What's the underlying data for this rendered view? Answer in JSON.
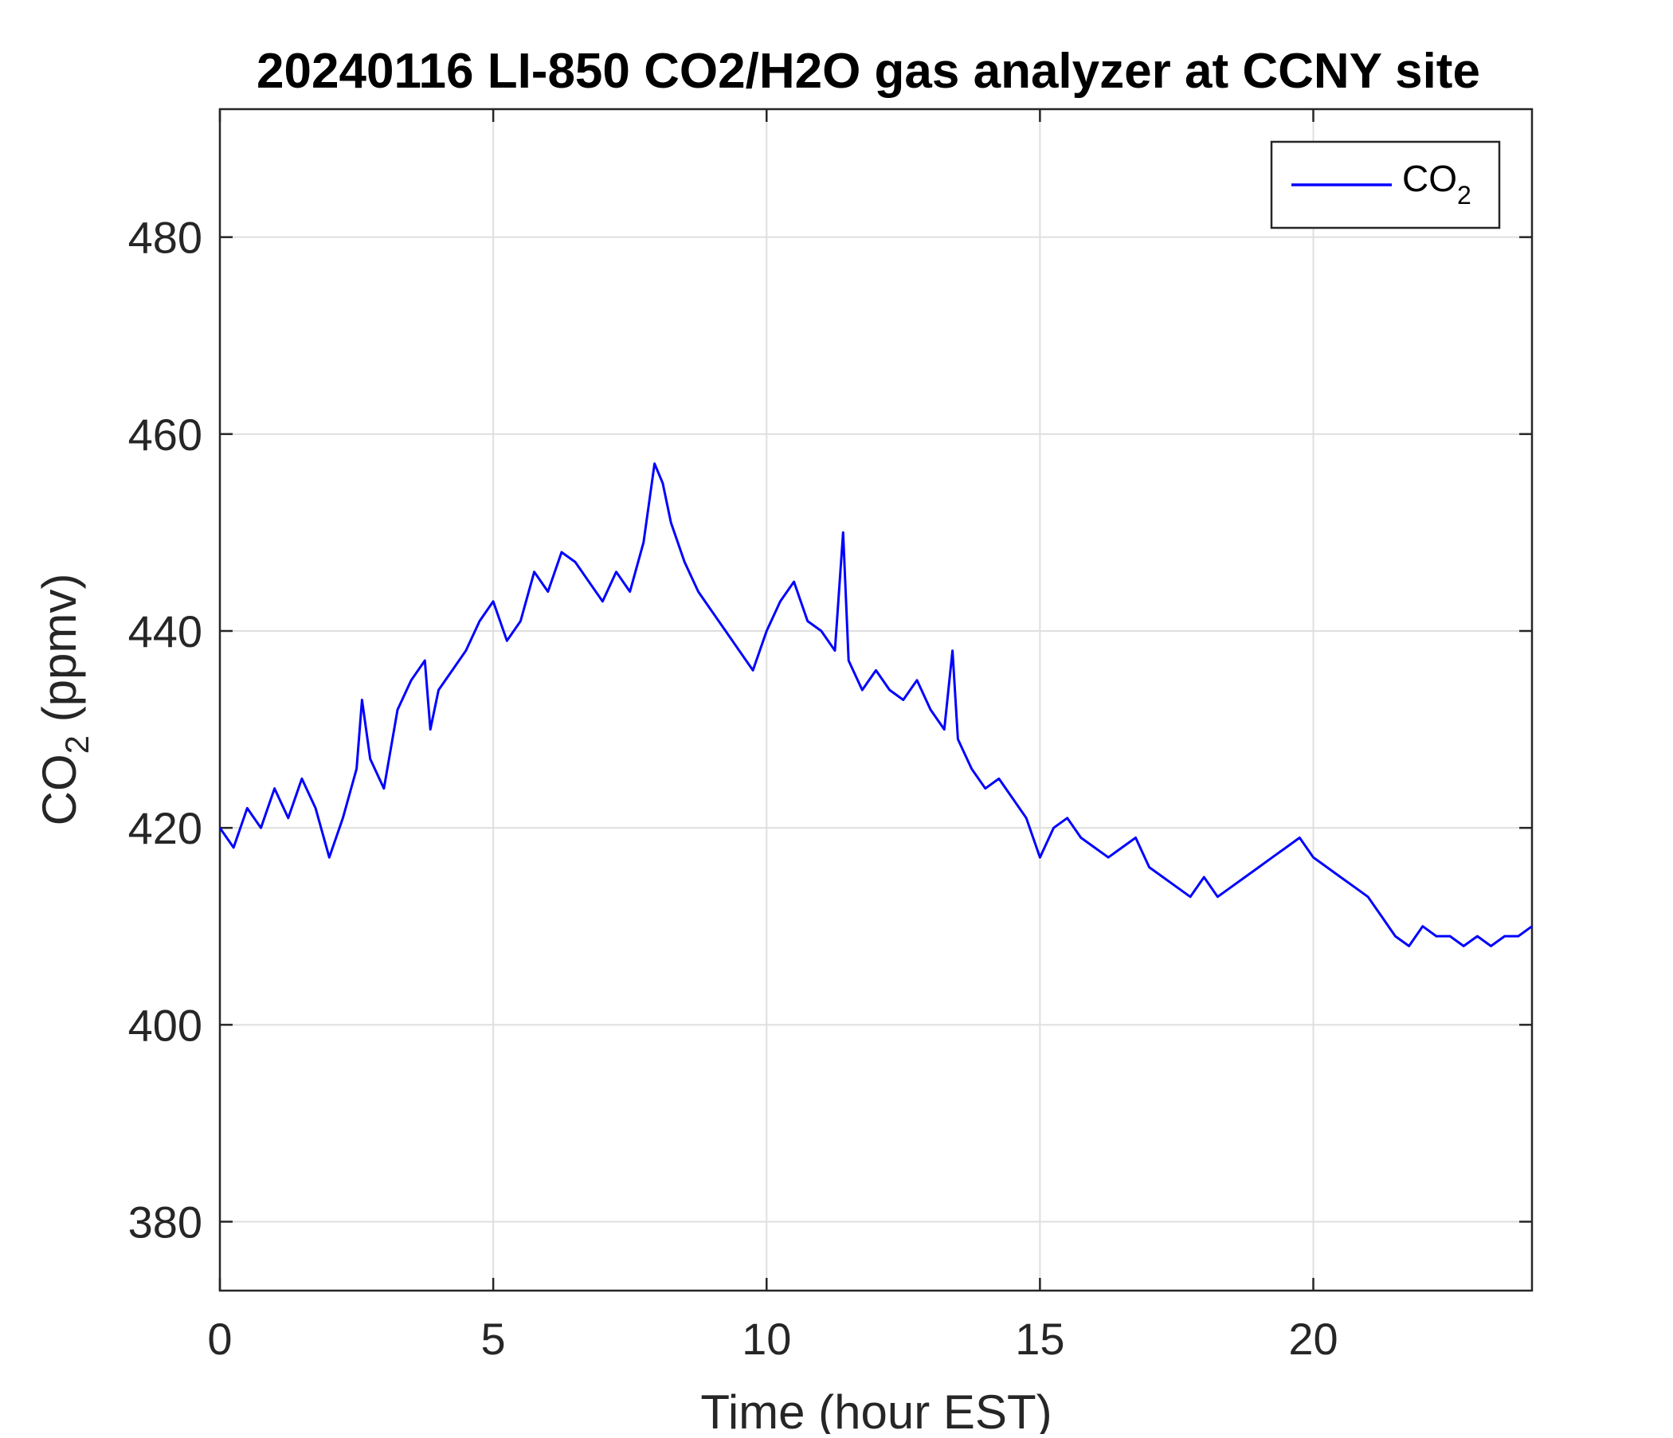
{
  "chart_data": {
    "type": "line",
    "title": "20240116 LI-850 CO2/H2O gas analyzer at CCNY site",
    "xlabel": "Time (hour EST)",
    "ylabel": {
      "base": "CO",
      "sub": "2",
      "rest": " (ppmv)"
    },
    "xlim": [
      0,
      24
    ],
    "ylim": [
      373,
      493
    ],
    "xticks": [
      0,
      5,
      10,
      15,
      20
    ],
    "yticks": [
      380,
      400,
      420,
      440,
      460,
      480
    ],
    "grid": true,
    "legend": {
      "position": "top-right",
      "entries": [
        {
          "base": "CO",
          "sub": "2"
        }
      ]
    },
    "series": [
      {
        "name": "CO2",
        "color": "#0000ff",
        "x": [
          0,
          0.25,
          0.5,
          0.75,
          1.0,
          1.25,
          1.5,
          1.75,
          2.0,
          2.25,
          2.5,
          2.6,
          2.75,
          3.0,
          3.25,
          3.5,
          3.75,
          3.85,
          4.0,
          4.25,
          4.5,
          4.75,
          5.0,
          5.25,
          5.5,
          5.75,
          6.0,
          6.25,
          6.5,
          6.75,
          7.0,
          7.25,
          7.5,
          7.75,
          7.95,
          8.1,
          8.25,
          8.5,
          8.75,
          9.0,
          9.25,
          9.5,
          9.75,
          10.0,
          10.25,
          10.5,
          10.75,
          11.0,
          11.25,
          11.4,
          11.5,
          11.75,
          12.0,
          12.25,
          12.5,
          12.75,
          13.0,
          13.25,
          13.4,
          13.5,
          13.75,
          14.0,
          14.25,
          14.5,
          14.75,
          15.0,
          15.25,
          15.5,
          15.75,
          16.0,
          16.25,
          16.5,
          16.75,
          17.0,
          17.25,
          17.5,
          17.75,
          18.0,
          18.25,
          18.5,
          18.75,
          19.0,
          19.25,
          19.5,
          19.75,
          20.0,
          20.25,
          20.5,
          20.75,
          21.0,
          21.25,
          21.5,
          21.75,
          22.0,
          22.25,
          22.5,
          22.75,
          23.0,
          23.25,
          23.5,
          23.75,
          24.0
        ],
        "y": [
          420,
          418,
          422,
          420,
          424,
          421,
          425,
          422,
          417,
          421,
          426,
          433,
          427,
          424,
          432,
          435,
          437,
          430,
          434,
          436,
          438,
          441,
          443,
          439,
          441,
          446,
          444,
          448,
          447,
          445,
          443,
          446,
          444,
          449,
          457,
          455,
          451,
          447,
          444,
          442,
          440,
          438,
          436,
          440,
          443,
          445,
          441,
          440,
          438,
          450,
          437,
          434,
          436,
          434,
          433,
          435,
          432,
          430,
          438,
          429,
          426,
          424,
          425,
          423,
          421,
          417,
          420,
          421,
          419,
          418,
          417,
          418,
          419,
          416,
          415,
          414,
          413,
          415,
          413,
          414,
          415,
          416,
          417,
          418,
          419,
          417,
          416,
          415,
          414,
          413,
          411,
          409,
          408,
          410,
          409,
          409,
          408,
          409,
          408,
          409,
          409,
          410
        ]
      }
    ]
  }
}
